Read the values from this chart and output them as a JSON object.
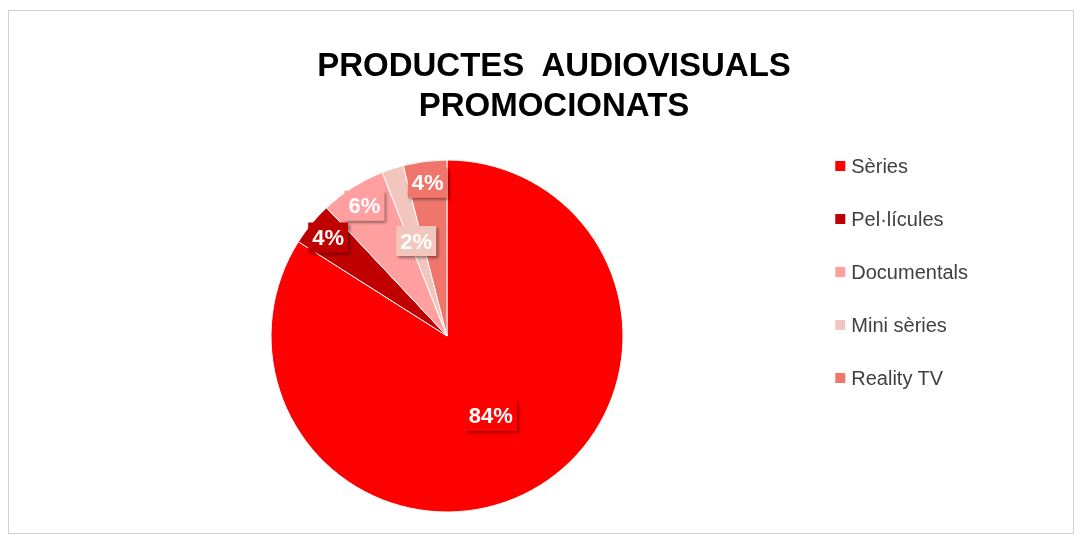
{
  "chart_data": {
    "type": "pie",
    "title": "PRODUCTES  AUDIOVISUALS\nPROMOCIONATS",
    "categories": [
      "Sèries",
      "Pel·lícules",
      "Documentals",
      "Mini sèries",
      "Reality TV"
    ],
    "values": [
      84,
      4,
      6,
      2,
      4
    ],
    "value_labels": [
      "84%",
      "4%",
      "6%",
      "2%",
      "4%"
    ],
    "colors": [
      "#ff0000",
      "#c00000",
      "#ff9f9f",
      "#f2c6bc",
      "#f0766c"
    ],
    "legend": "right"
  }
}
